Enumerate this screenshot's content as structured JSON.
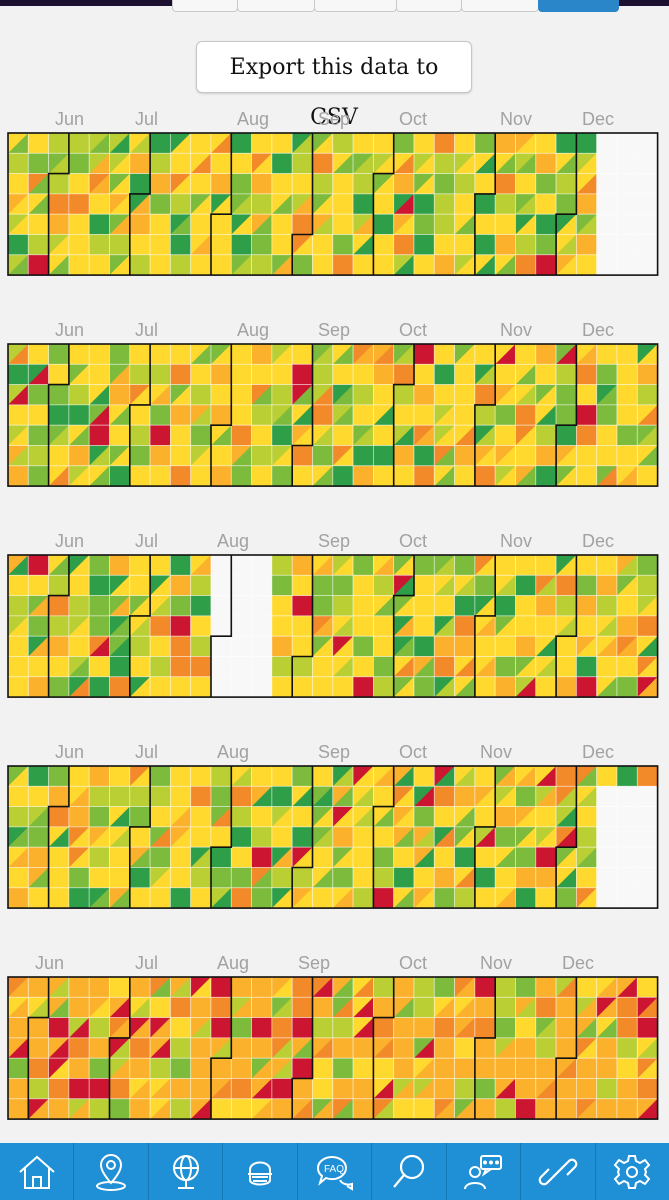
{
  "header": {
    "export_label": "Export this data to CSV"
  },
  "calendars": [
    {
      "months": [
        "Jun",
        "Jul",
        "Aug",
        "Sep",
        "Oct",
        "Nov",
        "Dec"
      ]
    },
    {
      "months": [
        "Jun",
        "Jul",
        "Aug",
        "Sep",
        "Oct",
        "Nov",
        "Dec"
      ]
    },
    {
      "months": [
        "Jun",
        "Jul",
        "Aug",
        "Sep",
        "Oct",
        "Nov",
        "Dec"
      ]
    },
    {
      "months": [
        "Jun",
        "Jul",
        "Aug",
        "Sep",
        "Oct",
        "Nov",
        "Dec"
      ]
    },
    {
      "months": [
        "Jun",
        "Jul",
        "Aug",
        "Sep",
        "Oct",
        "Nov",
        "Dec"
      ]
    }
  ],
  "colors": {
    "scale": [
      "#2e9e48",
      "#7dbb3c",
      "#b9cf33",
      "#ffd92e",
      "#fbb12c",
      "#f38a2a",
      "#cc1631"
    ],
    "empty": "#f8f8f8",
    "nav_bg": "#1f8fd6"
  },
  "bottom_nav": [
    {
      "icon": "home-icon"
    },
    {
      "icon": "location-pin-icon"
    },
    {
      "icon": "globe-icon"
    },
    {
      "icon": "mask-face-icon"
    },
    {
      "icon": "faq-icon"
    },
    {
      "icon": "search-icon"
    },
    {
      "icon": "support-chat-icon"
    },
    {
      "icon": "link-icon"
    },
    {
      "icon": "settings-gear-icon"
    }
  ]
}
